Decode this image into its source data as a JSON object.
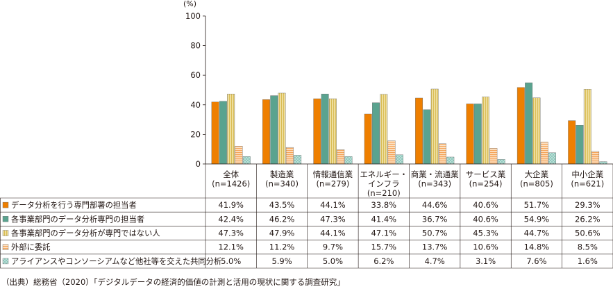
{
  "chart_data": {
    "type": "bar",
    "unit": "(%)",
    "ylim": [
      0,
      100
    ],
    "yticks": [
      0,
      20,
      40,
      60,
      80,
      100
    ],
    "grid": false,
    "categories": [
      {
        "lines": [
          "全体",
          "(n=1426)"
        ]
      },
      {
        "lines": [
          "製造業",
          "(n=340)"
        ]
      },
      {
        "lines": [
          "情報通信業",
          "(n=279)"
        ]
      },
      {
        "lines": [
          "エネルギー・",
          "インフラ",
          "(n=210)"
        ]
      },
      {
        "lines": [
          "商業・流通業",
          "(n=343)"
        ]
      },
      {
        "lines": [
          "サービス業",
          "(n=254)"
        ]
      },
      {
        "lines": [
          "大企業",
          "(n=805)"
        ]
      },
      {
        "lines": [
          "中小企業",
          "(n=621)"
        ]
      }
    ],
    "series": [
      {
        "name": "データ分析を行う専門部署の担当者",
        "color": "#ee7f00",
        "pattern": "solid",
        "values": [
          41.9,
          43.5,
          44.1,
          33.8,
          44.6,
          40.6,
          51.7,
          29.3
        ],
        "labels": [
          "41.9%",
          "43.5%",
          "44.1%",
          "33.8%",
          "44.6%",
          "40.6%",
          "51.7%",
          "29.3%"
        ]
      },
      {
        "name": "各事業部門のデータ分析専門の担当者",
        "color": "#5aa38f",
        "pattern": "solid",
        "values": [
          42.4,
          46.2,
          47.3,
          41.4,
          36.7,
          40.6,
          54.9,
          26.2
        ],
        "labels": [
          "42.4%",
          "46.2%",
          "47.3%",
          "41.4%",
          "36.7%",
          "40.6%",
          "54.9%",
          "26.2%"
        ]
      },
      {
        "name": "各事業部門のデータ分析が専門ではない人",
        "color": "#d9bd55",
        "pattern": "vertical",
        "values": [
          47.3,
          47.9,
          44.1,
          47.1,
          50.7,
          45.3,
          44.7,
          50.6
        ],
        "labels": [
          "47.3%",
          "47.9%",
          "44.1%",
          "47.1%",
          "50.7%",
          "45.3%",
          "44.7%",
          "50.6%"
        ]
      },
      {
        "name": "外部に委託",
        "color": "#f4a45a",
        "pattern": "horizontal",
        "values": [
          12.1,
          11.2,
          9.7,
          15.7,
          13.7,
          10.6,
          14.8,
          8.5
        ],
        "labels": [
          "12.1%",
          "11.2%",
          "9.7%",
          "15.7%",
          "13.7%",
          "10.6%",
          "14.8%",
          "8.5%"
        ]
      },
      {
        "name": "アライアンスやコンソーシアムなど他社等を交えた共同分析",
        "color": "#8fc9bd",
        "pattern": "dots",
        "values": [
          5.0,
          5.9,
          5.0,
          6.2,
          4.7,
          3.1,
          7.6,
          1.6
        ],
        "labels": [
          "5.0%",
          "5.9%",
          "5.0%",
          "6.2%",
          "4.7%",
          "3.1%",
          "7.6%",
          "1.6%"
        ]
      }
    ]
  },
  "source": "（出典）総務省（2020）「デジタルデータの経済的価値の計測と活用の現状に関する調査研究」"
}
